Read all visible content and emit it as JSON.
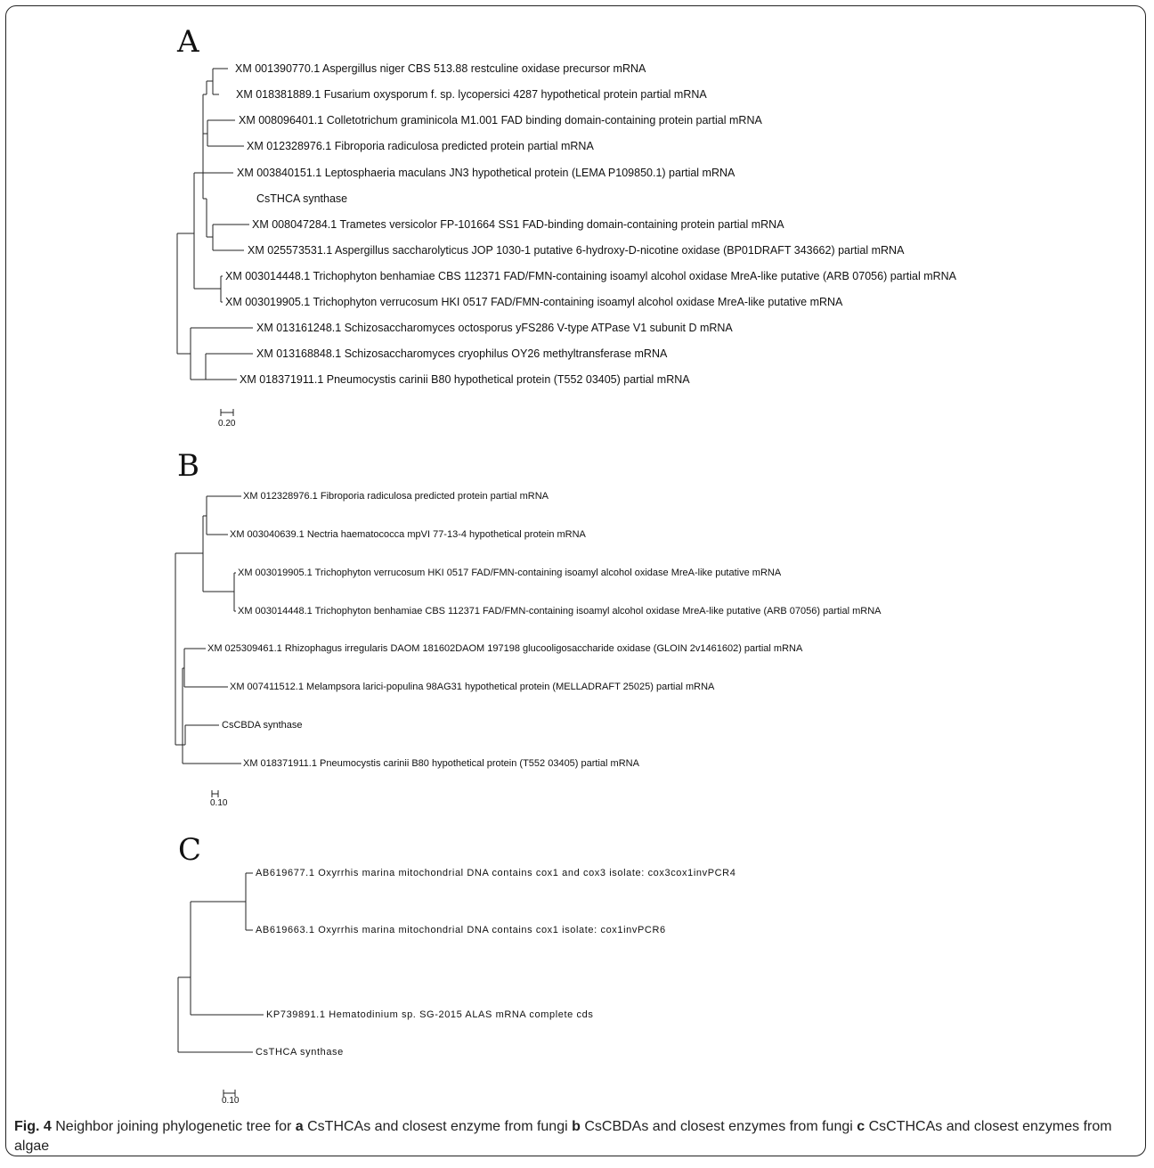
{
  "panels": {
    "a": {
      "letter": "A",
      "leaves": [
        "XM 001390770.1 Aspergillus niger CBS 513.88 restculine oxidase precursor mRNA",
        "XM 018381889.1 Fusarium oxysporum f. sp. lycopersici 4287 hypothetical protein partial mRNA",
        "XM 008096401.1 Colletotrichum graminicola M1.001 FAD binding domain-containing protein partial mRNA",
        "XM 012328976.1 Fibroporia radiculosa predicted protein partial mRNA",
        "XM 003840151.1 Leptosphaeria maculans JN3 hypothetical protein (LEMA P109850.1) partial mRNA",
        "CsTHCA synthase",
        "XM 008047284.1 Trametes versicolor FP-101664 SS1 FAD-binding domain-containing protein partial mRNA",
        "XM 025573531.1 Aspergillus saccharolyticus JOP 1030-1 putative 6-hydroxy-D-nicotine oxidase (BP01DRAFT 343662) partial mRNA",
        "XM 003014448.1 Trichophyton benhamiae CBS 112371 FAD/FMN-containing isoamyl alcohol oxidase MreA-like putative (ARB 07056) partial mRNA",
        "XM 003019905.1 Trichophyton verrucosum HKI 0517 FAD/FMN-containing isoamyl alcohol oxidase MreA-like putative mRNA",
        "XM 013161248.1 Schizosaccharomyces octosporus yFS286 V-type ATPase V1 subunit D mRNA",
        "XM 013168848.1 Schizosaccharomyces cryophilus OY26 methyltransferase mRNA",
        "XM 018371911.1 Pneumocystis carinii B80 hypothetical protein (T552 03405) partial mRNA"
      ],
      "scale": "0.20"
    },
    "b": {
      "letter": "B",
      "leaves": [
        "XM 012328976.1 Fibroporia radiculosa predicted protein partial mRNA",
        "XM 003040639.1 Nectria haematococca mpVI 77-13-4 hypothetical protein mRNA",
        "XM 003019905.1 Trichophyton verrucosum HKI 0517 FAD/FMN-containing isoamyl alcohol oxidase MreA-like putative mRNA",
        "XM 003014448.1 Trichophyton benhamiae CBS 112371 FAD/FMN-containing isoamyl alcohol oxidase MreA-like putative (ARB 07056) partial mRNA",
        "XM 025309461.1 Rhizophagus irregularis DAOM 181602DAOM 197198 glucooligosaccharide oxidase (GLOIN 2v1461602) partial mRNA",
        "XM 007411512.1 Melampsora larici-populina 98AG31 hypothetical protein (MELLADRAFT 25025) partial mRNA",
        "CsCBDA synthase",
        "XM 018371911.1 Pneumocystis carinii B80 hypothetical protein (T552 03405) partial mRNA"
      ],
      "scale": "0.10"
    },
    "c": {
      "letter": "C",
      "leaves": [
        "AB619677.1 Oxyrrhis marina mitochondrial DNA contains cox1 and cox3 isolate: cox3cox1invPCR4",
        "AB619663.1 Oxyrrhis marina mitochondrial DNA contains cox1 isolate: cox1invPCR6",
        "KP739891.1 Hematodinium sp. SG-2015 ALAS mRNA complete cds",
        "CsTHCA synthase"
      ],
      "scale": "0.10"
    }
  },
  "caption": {
    "fig_label": "Fig. 4",
    "intro": "Neighbor joining phylogenetic tree for",
    "a_marker": "a",
    "a_text": "CsTHCAs and closest enzyme from fungi",
    "b_marker": "b",
    "b_text": "CsCBDAs and closest enzymes from fungi",
    "c_marker": "c",
    "c_text": "CsCTHCAs and closest enzymes from algae"
  }
}
